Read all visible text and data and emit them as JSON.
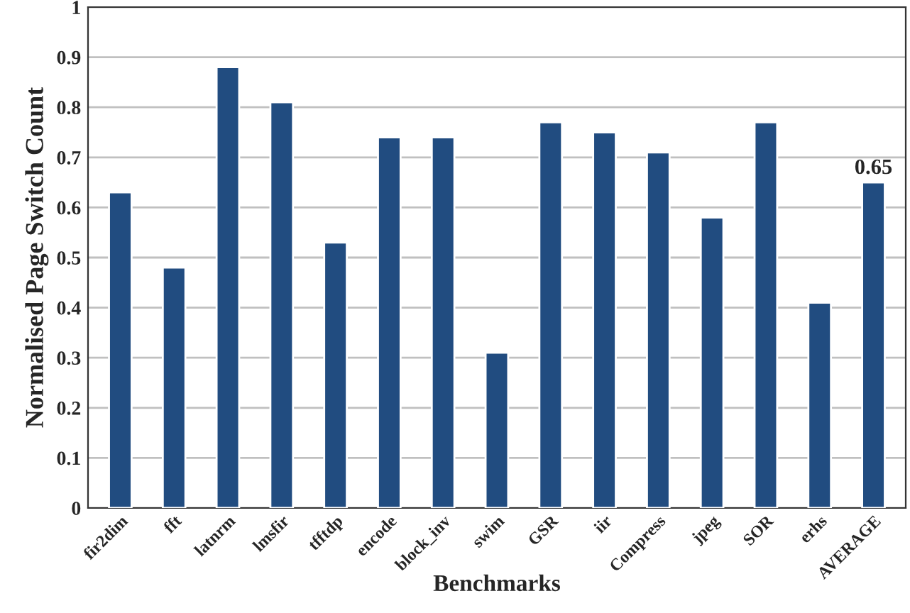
{
  "chart_data": {
    "type": "bar",
    "xlabel": "Benchmarks",
    "ylabel": "Normalised Page Switch Count",
    "categories": [
      "fir2dim",
      "fft",
      "latnrm",
      "lmsfir",
      "tfftdp",
      "encode",
      "block_inv",
      "swim",
      "GSR",
      "iir",
      "Compress",
      "jpeg",
      "SOR",
      "erhs",
      "AVERAGE"
    ],
    "values": [
      0.63,
      0.48,
      0.88,
      0.81,
      0.53,
      0.74,
      0.74,
      0.31,
      0.77,
      0.75,
      0.71,
      0.58,
      0.77,
      0.41,
      0.65
    ],
    "value_labels": [
      null,
      null,
      null,
      null,
      null,
      null,
      null,
      null,
      null,
      null,
      null,
      null,
      null,
      null,
      "0.65"
    ],
    "color": "#214c80",
    "ylim": [
      0,
      1
    ],
    "yticks": [
      0,
      0.1,
      0.2,
      0.3,
      0.4,
      0.5,
      0.6,
      0.7,
      0.8,
      0.9,
      1
    ],
    "grid": "y"
  }
}
